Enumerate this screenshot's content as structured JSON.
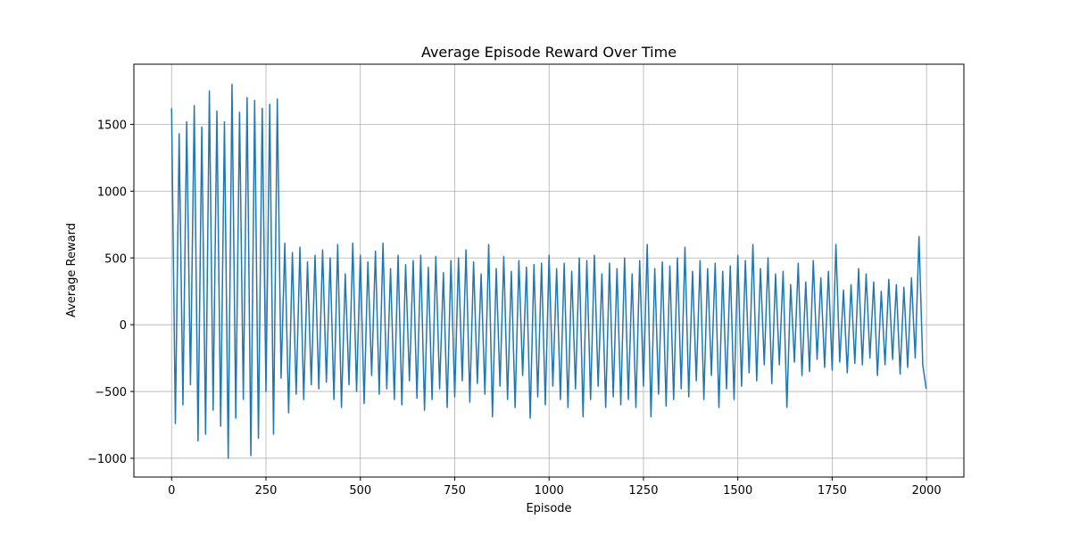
{
  "chart_data": {
    "type": "line",
    "title": "Average Episode Reward Over Time",
    "x_label": "Episode",
    "y_label": "Average Reward",
    "x": [
      0,
      10,
      20,
      30,
      40,
      50,
      60,
      70,
      80,
      90,
      100,
      110,
      120,
      130,
      140,
      150,
      160,
      170,
      180,
      190,
      200,
      210,
      220,
      230,
      240,
      250,
      260,
      270,
      280,
      290,
      300,
      310,
      320,
      330,
      340,
      350,
      360,
      370,
      380,
      390,
      400,
      410,
      420,
      430,
      440,
      450,
      460,
      470,
      480,
      490,
      500,
      510,
      520,
      530,
      540,
      550,
      560,
      570,
      580,
      590,
      600,
      610,
      620,
      630,
      640,
      650,
      660,
      670,
      680,
      690,
      700,
      710,
      720,
      730,
      740,
      750,
      760,
      770,
      780,
      790,
      800,
      810,
      820,
      830,
      840,
      850,
      860,
      870,
      880,
      890,
      900,
      910,
      920,
      930,
      940,
      950,
      960,
      970,
      980,
      990,
      1000,
      1010,
      1020,
      1030,
      1040,
      1050,
      1060,
      1070,
      1080,
      1090,
      1100,
      1110,
      1120,
      1130,
      1140,
      1150,
      1160,
      1170,
      1180,
      1190,
      1200,
      1210,
      1220,
      1230,
      1240,
      1250,
      1260,
      1270,
      1280,
      1290,
      1300,
      1310,
      1320,
      1330,
      1340,
      1350,
      1360,
      1370,
      1380,
      1390,
      1400,
      1410,
      1420,
      1430,
      1440,
      1450,
      1460,
      1470,
      1480,
      1490,
      1500,
      1510,
      1520,
      1530,
      1540,
      1550,
      1560,
      1570,
      1580,
      1590,
      1600,
      1610,
      1620,
      1630,
      1640,
      1650,
      1660,
      1670,
      1680,
      1690,
      1700,
      1710,
      1720,
      1730,
      1740,
      1750,
      1760,
      1770,
      1780,
      1790,
      1800,
      1810,
      1820,
      1830,
      1840,
      1850,
      1860,
      1870,
      1880,
      1890,
      1900,
      1910,
      1920,
      1930,
      1940,
      1950,
      1960,
      1970,
      1980,
      1990,
      1999
    ],
    "series": [
      {
        "name": "Average Reward",
        "color": "#1f77b4",
        "values": [
          1620,
          -740,
          1430,
          -600,
          1520,
          -450,
          1640,
          -870,
          1480,
          -820,
          1750,
          -640,
          1600,
          -760,
          1520,
          -1000,
          1800,
          -700,
          1590,
          -560,
          1700,
          -980,
          1680,
          -850,
          1620,
          -500,
          1650,
          -820,
          1690,
          -400,
          610,
          -660,
          540,
          -520,
          580,
          -560,
          470,
          -450,
          520,
          -480,
          560,
          -430,
          500,
          -560,
          600,
          -620,
          380,
          -450,
          610,
          -500,
          520,
          -590,
          470,
          -380,
          550,
          -520,
          610,
          -480,
          420,
          -560,
          520,
          -600,
          450,
          -420,
          480,
          -550,
          520,
          -640,
          430,
          -560,
          510,
          -480,
          390,
          -620,
          480,
          -540,
          500,
          -420,
          560,
          -580,
          470,
          -440,
          380,
          -520,
          600,
          -690,
          420,
          -460,
          510,
          -560,
          400,
          -620,
          480,
          -380,
          430,
          -700,
          450,
          -540,
          460,
          -600,
          520,
          -460,
          420,
          -560,
          460,
          -620,
          400,
          -480,
          500,
          -690,
          480,
          -560,
          520,
          -460,
          380,
          -620,
          460,
          -540,
          420,
          -600,
          500,
          -560,
          380,
          -620,
          480,
          -460,
          600,
          -690,
          420,
          -520,
          470,
          -610,
          440,
          -560,
          500,
          -480,
          580,
          -540,
          400,
          -420,
          480,
          -560,
          420,
          -380,
          460,
          -620,
          400,
          -480,
          440,
          -560,
          520,
          -460,
          480,
          -360,
          600,
          -420,
          420,
          -300,
          500,
          -440,
          380,
          -300,
          400,
          -620,
          300,
          -280,
          460,
          -380,
          320,
          -350,
          480,
          -260,
          350,
          -320,
          400,
          -340,
          600,
          -280,
          260,
          -360,
          300,
          -290,
          420,
          -300,
          380,
          -250,
          320,
          -380,
          250,
          -300,
          340,
          -260,
          300,
          -370,
          280,
          -320,
          350,
          -250,
          660,
          -300,
          -480
        ]
      }
    ],
    "xlim": [
      -99.95,
      2098.95
    ],
    "ylim": [
      -1140.5,
      1950.5
    ],
    "xticks": [
      0,
      250,
      500,
      750,
      1000,
      1250,
      1500,
      1750,
      2000
    ],
    "yticks": [
      {
        "value": -1000,
        "label": "−1000"
      },
      {
        "value": -500,
        "label": "−500"
      },
      0,
      500,
      1000,
      1500
    ],
    "grid": true
  }
}
